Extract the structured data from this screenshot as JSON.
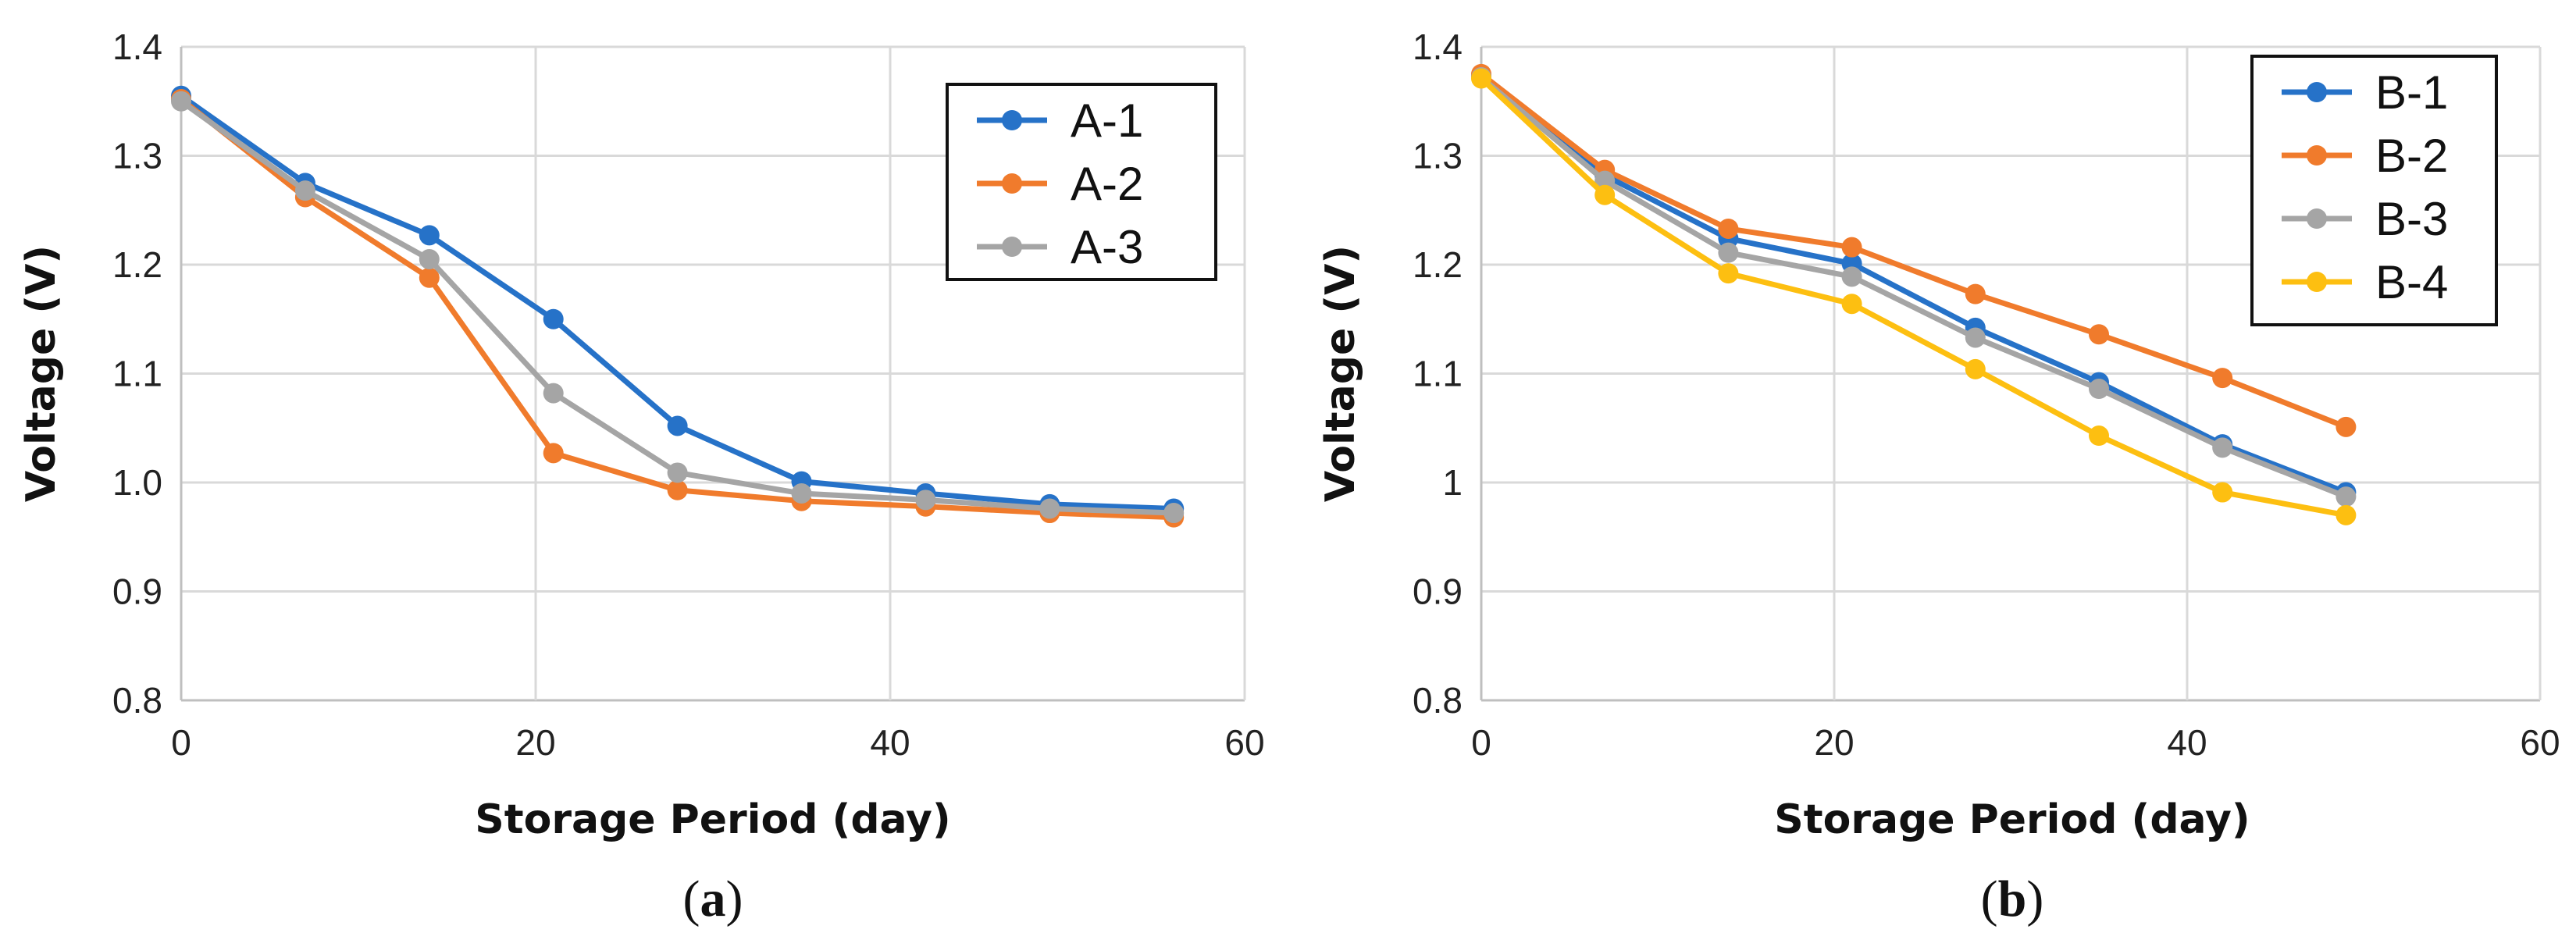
{
  "figure": {
    "colors": {
      "blue": "#2672c8",
      "orange": "#f07b2c",
      "gray": "#a5a5a5",
      "yellow": "#fdbf11"
    }
  },
  "chart_data": [
    {
      "type": "line",
      "panel_label": "a",
      "xlabel": "Storage Period (day)",
      "ylabel": "Voltage (V)",
      "xlim": [
        0,
        60
      ],
      "ylim": [
        0.8,
        1.4
      ],
      "x_ticks": [
        "0",
        "20",
        "40",
        "60"
      ],
      "y_ticks": [
        "0.8",
        "0.9",
        "1.0",
        "1.1",
        "1.2",
        "1.3",
        "1.4"
      ],
      "grid": true,
      "legend_position": "top-right",
      "x": [
        0,
        7,
        14,
        21,
        28,
        35,
        42,
        49,
        56
      ],
      "series": [
        {
          "name": "A-1",
          "color": "#2672c8",
          "values": [
            1.355,
            1.275,
            1.227,
            1.15,
            1.052,
            1.001,
            0.99,
            0.98,
            0.976
          ]
        },
        {
          "name": "A-2",
          "color": "#f07b2c",
          "values": [
            1.352,
            1.262,
            1.188,
            1.027,
            0.993,
            0.983,
            0.978,
            0.972,
            0.968
          ]
        },
        {
          "name": "A-3",
          "color": "#a5a5a5",
          "values": [
            1.35,
            1.268,
            1.205,
            1.082,
            1.009,
            0.99,
            0.984,
            0.976,
            0.972
          ]
        }
      ]
    },
    {
      "type": "line",
      "panel_label": "b",
      "xlabel": "Storage Period (day)",
      "ylabel": "Voltage (V)",
      "xlim": [
        0,
        60
      ],
      "ylim": [
        0.8,
        1.4
      ],
      "x_ticks": [
        "0",
        "20",
        "40",
        "60"
      ],
      "y_ticks": [
        "0.8",
        "0.9",
        "1",
        "1.1",
        "1.2",
        "1.3",
        "1.4"
      ],
      "grid": true,
      "legend_position": "top-right",
      "x": [
        0,
        7,
        14,
        21,
        28,
        35,
        42,
        49
      ],
      "series": [
        {
          "name": "B-1",
          "color": "#2672c8",
          "values": [
            1.373,
            1.282,
            1.224,
            1.201,
            1.142,
            1.092,
            1.035,
            0.991
          ]
        },
        {
          "name": "B-2",
          "color": "#f07b2c",
          "values": [
            1.375,
            1.287,
            1.233,
            1.216,
            1.173,
            1.136,
            1.096,
            1.051
          ]
        },
        {
          "name": "B-3",
          "color": "#a5a5a5",
          "values": [
            1.372,
            1.277,
            1.211,
            1.189,
            1.133,
            1.086,
            1.032,
            0.987
          ]
        },
        {
          "name": "B-4",
          "color": "#fdbf11",
          "values": [
            1.371,
            1.264,
            1.192,
            1.164,
            1.104,
            1.043,
            0.991,
            0.97
          ]
        }
      ]
    }
  ]
}
